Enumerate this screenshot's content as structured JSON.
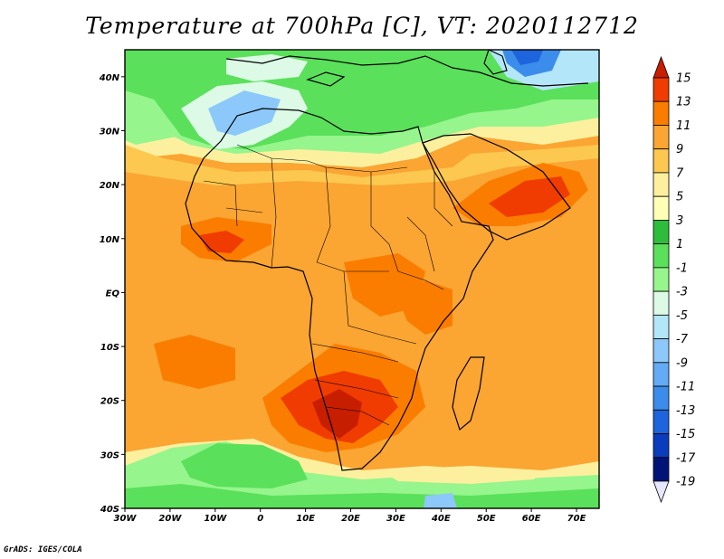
{
  "title": "Temperature at 700hPa [C], VT: 2020112712",
  "credit": "GrADS: IGES/COLA",
  "map": {
    "lon_range": [
      -30,
      75
    ],
    "lat_range": [
      -40,
      45
    ],
    "lon_ticks": [
      {
        "value": -30,
        "label": "30W"
      },
      {
        "value": -20,
        "label": "20W"
      },
      {
        "value": -10,
        "label": "10W"
      },
      {
        "value": 0,
        "label": "0"
      },
      {
        "value": 10,
        "label": "10E"
      },
      {
        "value": 20,
        "label": "20E"
      },
      {
        "value": 30,
        "label": "30E"
      },
      {
        "value": 40,
        "label": "40E"
      },
      {
        "value": 50,
        "label": "50E"
      },
      {
        "value": 60,
        "label": "60E"
      },
      {
        "value": 70,
        "label": "70E"
      }
    ],
    "lat_ticks": [
      {
        "value": 40,
        "label": "40N"
      },
      {
        "value": 30,
        "label": "30N"
      },
      {
        "value": 20,
        "label": "20N"
      },
      {
        "value": 10,
        "label": "10N"
      },
      {
        "value": 0,
        "label": "EQ"
      },
      {
        "value": -10,
        "label": "10S"
      },
      {
        "value": -20,
        "label": "20S"
      },
      {
        "value": -30,
        "label": "30S"
      },
      {
        "value": -40,
        "label": "40S"
      }
    ]
  },
  "colorbar": {
    "levels": [
      "15",
      "13",
      "11",
      "9",
      "7",
      "5",
      "3",
      "1",
      "-1",
      "-3",
      "-5",
      "-7",
      "-9",
      "-11",
      "-13",
      "-15",
      "-17",
      "-19"
    ],
    "colors": [
      "#c81e00",
      "#f03c00",
      "#fa7d00",
      "#fba533",
      "#fcc850",
      "#fcf09e",
      "#ffffb5",
      "#2ebd3b",
      "#5ae05a",
      "#96f58c",
      "#dcfae6",
      "#b4e6fa",
      "#8cc8fa",
      "#64aaf5",
      "#3c8ceb",
      "#1e64dc",
      "#0a3cbe",
      "#001478",
      "#e6e6ff"
    ]
  }
}
